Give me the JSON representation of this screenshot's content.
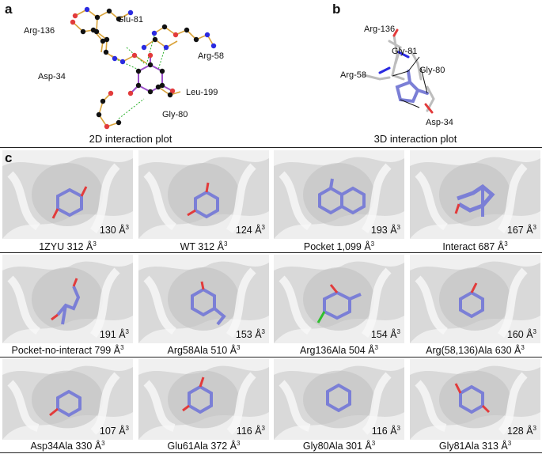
{
  "panels": {
    "a": {
      "label": "a",
      "caption": "2D interaction plot",
      "residues": [
        "Glu-81",
        "Arg-136",
        "Arg-58",
        "Asp-34",
        "Leu-199",
        "Gly-80"
      ]
    },
    "b": {
      "label": "b",
      "caption": "3D interaction plot",
      "residues": [
        "Arg-136",
        "Gly-81",
        "Gly-80",
        "Arg-58",
        "Asp-34"
      ]
    },
    "c": {
      "label": "c",
      "tiles": [
        {
          "name": "1ZYU 312 Å",
          "exp": "3",
          "volume": "130 Å",
          "vexp": "3"
        },
        {
          "name": "WT 312 Å",
          "exp": "3",
          "volume": "124 Å",
          "vexp": "3"
        },
        {
          "name": "Pocket 1,099 Å",
          "exp": "3",
          "volume": "193 Å",
          "vexp": "3"
        },
        {
          "name": "Interact 687 Å",
          "exp": "3",
          "volume": "167 Å",
          "vexp": "3"
        },
        {
          "name": "Pocket-no-interact 799 Å",
          "exp": "3",
          "volume": "191 Å",
          "vexp": "3"
        },
        {
          "name": "Arg58Ala 510 Å",
          "exp": "3",
          "volume": "153 Å",
          "vexp": "3"
        },
        {
          "name": "Arg136Ala 504 Å",
          "exp": "3",
          "volume": "154 Å",
          "vexp": "3"
        },
        {
          "name": "Arg(58,136)Ala 630 Å",
          "exp": "3",
          "volume": "160 Å",
          "vexp": "3"
        },
        {
          "name": "Asp34Ala 330 Å",
          "exp": "3",
          "volume": "107 Å",
          "vexp": "3"
        },
        {
          "name": "Glu61Ala 372 Å",
          "exp": "3",
          "volume": "116 Å",
          "vexp": "3"
        },
        {
          "name": "Gly80Ala 301 Å",
          "exp": "3",
          "volume": "116 Å",
          "vexp": "3"
        },
        {
          "name": "Gly81Ala 313 Å",
          "exp": "3",
          "volume": "128 Å",
          "vexp": "3"
        }
      ]
    }
  },
  "colors": {
    "ligand": "#7b7fd6",
    "oxygen": "#e23b3b",
    "nitrogen": "#2a2ae0",
    "carbon": "#111111",
    "bond": "#d9a33a",
    "hbond": "#2bb02b",
    "surface": "#dcdcdc",
    "chlorine": "#2fbf2f"
  }
}
